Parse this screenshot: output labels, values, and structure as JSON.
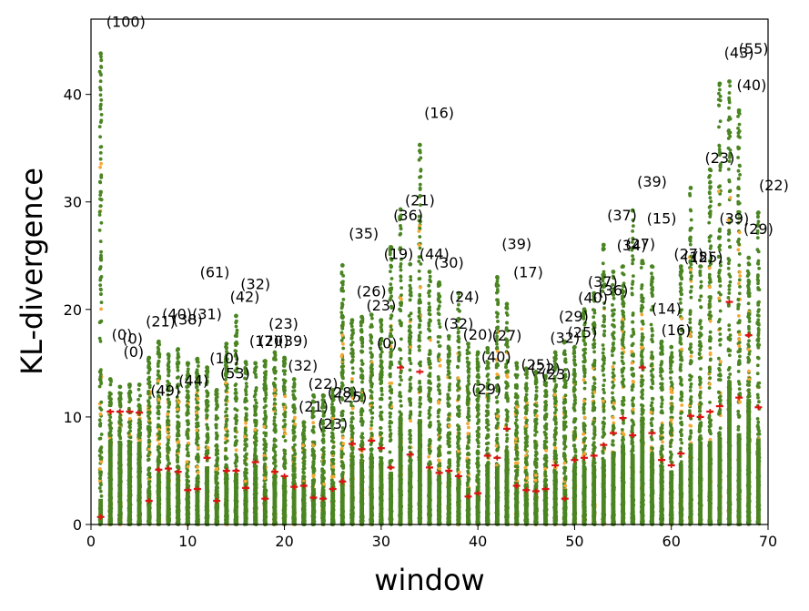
{
  "chart_data": {
    "type": "scatter",
    "title": "",
    "xlabel": "window",
    "ylabel": "KL-divergence",
    "xlim": [
      0,
      70
    ],
    "ylim": [
      0,
      47
    ],
    "xticks": [
      0,
      10,
      20,
      30,
      40,
      50,
      60,
      70
    ],
    "yticks": [
      0,
      10,
      20,
      30,
      40
    ],
    "grid": false,
    "legend": "none",
    "colors": {
      "points": "#4a8522",
      "secondary": "#f6a832",
      "median": "#dd1111"
    },
    "windows": [
      {
        "x": 1,
        "max": 43.8,
        "median": 0.7,
        "label": "(100)",
        "lx": 3.6,
        "ly": 46.3
      },
      {
        "x": 2,
        "max": 13.5,
        "median": 10.5,
        "label": "(0)",
        "lx": 3.2,
        "ly": 17.2
      },
      {
        "x": 3,
        "max": 12.8,
        "median": 10.5,
        "label": "(0)",
        "lx": 4.3,
        "ly": 16.8
      },
      {
        "x": 4,
        "max": 13.0,
        "median": 10.5,
        "label": "(0)",
        "lx": 4.4,
        "ly": 15.6
      },
      {
        "x": 5,
        "max": 13.0,
        "median": 10.4,
        "label": "",
        "lx": 0,
        "ly": 0
      },
      {
        "x": 6,
        "max": 15.5,
        "median": 2.2,
        "label": "(21)",
        "lx": 7.2,
        "ly": 18.4
      },
      {
        "x": 7,
        "max": 17.0,
        "median": 5.1,
        "label": "(49)",
        "lx": 7.7,
        "ly": 12.0
      },
      {
        "x": 8,
        "max": 15.8,
        "median": 5.2,
        "label": "(40)",
        "lx": 8.9,
        "ly": 19.1
      },
      {
        "x": 9,
        "max": 16.3,
        "median": 4.9,
        "label": "(38)",
        "lx": 10.0,
        "ly": 18.6
      },
      {
        "x": 10,
        "max": 15.0,
        "median": 3.2,
        "label": "(44)",
        "lx": 10.6,
        "ly": 12.9
      },
      {
        "x": 11,
        "max": 15.4,
        "median": 3.3,
        "label": "(31)",
        "lx": 12.0,
        "ly": 19.1
      },
      {
        "x": 12,
        "max": 14.6,
        "median": 6.2,
        "label": "(61)",
        "lx": 12.8,
        "ly": 23.0
      },
      {
        "x": 13,
        "max": 12.5,
        "median": 2.2,
        "label": "(10)",
        "lx": 13.8,
        "ly": 15.0
      },
      {
        "x": 14,
        "max": 16.8,
        "median": 5.0,
        "label": "(53)",
        "lx": 14.9,
        "ly": 13.6
      },
      {
        "x": 15,
        "max": 19.4,
        "median": 5.0,
        "label": "(42)",
        "lx": 15.9,
        "ly": 20.7
      },
      {
        "x": 16,
        "max": 15.1,
        "median": 3.4,
        "label": "(32)",
        "lx": 17.0,
        "ly": 21.9
      },
      {
        "x": 17,
        "max": 15.0,
        "median": 5.8,
        "label": "(17)",
        "lx": 17.9,
        "ly": 16.6
      },
      {
        "x": 18,
        "max": 15.2,
        "median": 2.4,
        "label": "(20)",
        "lx": 18.9,
        "ly": 16.6
      },
      {
        "x": 19,
        "max": 16.0,
        "median": 4.9,
        "label": "(23)",
        "lx": 19.9,
        "ly": 18.2
      },
      {
        "x": 20,
        "max": 15.5,
        "median": 4.5,
        "label": "(39)",
        "lx": 20.9,
        "ly": 16.6
      },
      {
        "x": 21,
        "max": 13.5,
        "median": 3.5,
        "label": "(32)",
        "lx": 21.9,
        "ly": 14.3
      },
      {
        "x": 22,
        "max": 9.5,
        "median": 3.6,
        "label": "(21)",
        "lx": 23.0,
        "ly": 10.5
      },
      {
        "x": 23,
        "max": 12.0,
        "median": 2.5,
        "label": "(22)",
        "lx": 24.0,
        "ly": 12.6
      },
      {
        "x": 24,
        "max": 12.0,
        "median": 2.4,
        "label": "(23)",
        "lx": 25.0,
        "ly": 8.9
      },
      {
        "x": 25,
        "max": 12.5,
        "median": 3.3,
        "label": "(28)",
        "lx": 26.0,
        "ly": 11.8
      },
      {
        "x": 26,
        "max": 24.1,
        "median": 4.0,
        "label": "(25)",
        "lx": 27.0,
        "ly": 11.4
      },
      {
        "x": 27,
        "max": 19.0,
        "median": 7.5,
        "label": "(35)",
        "lx": 28.2,
        "ly": 26.6
      },
      {
        "x": 28,
        "max": 19.3,
        "median": 7.0,
        "label": "(26)",
        "lx": 29.0,
        "ly": 21.2
      },
      {
        "x": 29,
        "max": 19.5,
        "median": 7.8,
        "label": "(23)",
        "lx": 30.0,
        "ly": 19.9
      },
      {
        "x": 30,
        "max": 19.0,
        "median": 7.1,
        "label": "(0)",
        "lx": 30.6,
        "ly": 16.4
      },
      {
        "x": 31,
        "max": 25.8,
        "median": 5.3,
        "label": "(19)",
        "lx": 31.8,
        "ly": 24.7
      },
      {
        "x": 32,
        "max": 29.3,
        "median": 14.6,
        "label": "(36)",
        "lx": 32.8,
        "ly": 28.3
      },
      {
        "x": 33,
        "max": 24.2,
        "median": 6.5,
        "label": "(21)",
        "lx": 34.0,
        "ly": 29.7
      },
      {
        "x": 34,
        "max": 35.3,
        "median": 14.2,
        "label": "(16)",
        "lx": 36.0,
        "ly": 37.8
      },
      {
        "x": 35,
        "max": 23.5,
        "median": 5.3,
        "label": "(44)",
        "lx": 35.5,
        "ly": 24.7
      },
      {
        "x": 36,
        "max": 22.5,
        "median": 4.8,
        "label": "(30)",
        "lx": 37.0,
        "ly": 23.9
      },
      {
        "x": 37,
        "max": 17.5,
        "median": 5.0,
        "label": "(32)",
        "lx": 38.0,
        "ly": 18.2
      },
      {
        "x": 38,
        "max": 21.5,
        "median": 4.5,
        "label": "(24)",
        "lx": 38.6,
        "ly": 20.7
      },
      {
        "x": 39,
        "max": 16.8,
        "median": 2.6,
        "label": "(20)",
        "lx": 40.0,
        "ly": 17.2
      },
      {
        "x": 40,
        "max": 16.0,
        "median": 2.9,
        "label": "(29)",
        "lx": 40.9,
        "ly": 12.1
      },
      {
        "x": 41,
        "max": 16.4,
        "median": 6.4,
        "label": "(40)",
        "lx": 41.9,
        "ly": 15.1
      },
      {
        "x": 42,
        "max": 23.0,
        "median": 6.2,
        "label": "(27)",
        "lx": 43.0,
        "ly": 17.1
      },
      {
        "x": 43,
        "max": 20.5,
        "median": 8.9,
        "label": "(39)",
        "lx": 44.0,
        "ly": 25.6
      },
      {
        "x": 44,
        "max": 15.0,
        "median": 3.6,
        "label": "(17)",
        "lx": 45.2,
        "ly": 23.0
      },
      {
        "x": 45,
        "max": 14.5,
        "median": 3.2,
        "label": "(25)",
        "lx": 46.0,
        "ly": 14.4
      },
      {
        "x": 46,
        "max": 14.2,
        "median": 3.1,
        "label": "(22)",
        "lx": 47.0,
        "ly": 14.0
      },
      {
        "x": 47,
        "max": 13.8,
        "median": 3.3,
        "label": "(23)",
        "lx": 48.1,
        "ly": 13.5
      },
      {
        "x": 48,
        "max": 16.0,
        "median": 5.5,
        "label": "(32)",
        "lx": 49.0,
        "ly": 16.9
      },
      {
        "x": 49,
        "max": 17.0,
        "median": 2.4,
        "label": "(29)",
        "lx": 49.9,
        "ly": 18.9
      },
      {
        "x": 50,
        "max": 16.5,
        "median": 6.0,
        "label": "(25)",
        "lx": 50.8,
        "ly": 17.4
      },
      {
        "x": 51,
        "max": 20.0,
        "median": 6.2,
        "label": "(40)",
        "lx": 51.9,
        "ly": 20.6
      },
      {
        "x": 52,
        "max": 21.5,
        "median": 6.4,
        "label": "(37)",
        "lx": 52.9,
        "ly": 22.1
      },
      {
        "x": 53,
        "max": 26.0,
        "median": 7.4,
        "label": "(36)",
        "lx": 54.0,
        "ly": 21.3
      },
      {
        "x": 54,
        "max": 23.5,
        "median": 8.5,
        "label": "(37)",
        "lx": 54.9,
        "ly": 28.3
      },
      {
        "x": 55,
        "max": 24.0,
        "median": 9.9,
        "label": "(34)",
        "lx": 55.9,
        "ly": 25.5
      },
      {
        "x": 56,
        "max": 29.2,
        "median": 8.3,
        "label": "(39)",
        "lx": 58.0,
        "ly": 31.4
      },
      {
        "x": 57,
        "max": 24.5,
        "median": 14.6,
        "label": "(15)",
        "lx": 59.0,
        "ly": 28.0
      },
      {
        "x": 58,
        "max": 24.0,
        "median": 8.5,
        "label": "(27)",
        "lx": 56.8,
        "ly": 25.6
      },
      {
        "x": 59,
        "max": 17.0,
        "median": 6.0,
        "label": "(14)",
        "lx": 59.5,
        "ly": 19.6
      },
      {
        "x": 60,
        "max": 16.5,
        "median": 5.5,
        "label": "(16)",
        "lx": 60.5,
        "ly": 17.6
      },
      {
        "x": 61,
        "max": 24.0,
        "median": 6.6,
        "label": "(27)",
        "lx": 61.8,
        "ly": 24.7
      },
      {
        "x": 62,
        "max": 31.3,
        "median": 10.1,
        "label": "(15)",
        "lx": 62.8,
        "ly": 24.4
      },
      {
        "x": 63,
        "max": 24.0,
        "median": 10.0,
        "label": "(25)",
        "lx": 63.8,
        "ly": 24.4
      },
      {
        "x": 64,
        "max": 33.0,
        "median": 10.5,
        "label": "(23)",
        "lx": 65.0,
        "ly": 33.6
      },
      {
        "x": 65,
        "max": 41.0,
        "median": 11.0,
        "label": "(39)",
        "lx": 66.5,
        "ly": 28.0
      },
      {
        "x": 66,
        "max": 41.2,
        "median": 20.7,
        "label": "(43)",
        "lx": 67.0,
        "ly": 43.4
      },
      {
        "x": 67,
        "max": 38.5,
        "median": 11.8,
        "label": "(55)",
        "lx": 68.5,
        "ly": 43.8
      },
      {
        "x": 68,
        "max": 24.8,
        "median": 17.6,
        "label": "(29)",
        "lx": 69.0,
        "ly": 27.0
      },
      {
        "x": 69,
        "max": 29.0,
        "median": 10.9,
        "label": "(22)",
        "lx": 70.6,
        "ly": 31.1
      },
      {
        "x": 70,
        "max": 0,
        "median": 0,
        "label": "(40)",
        "lx": 68.3,
        "ly": 40.4
      }
    ]
  }
}
